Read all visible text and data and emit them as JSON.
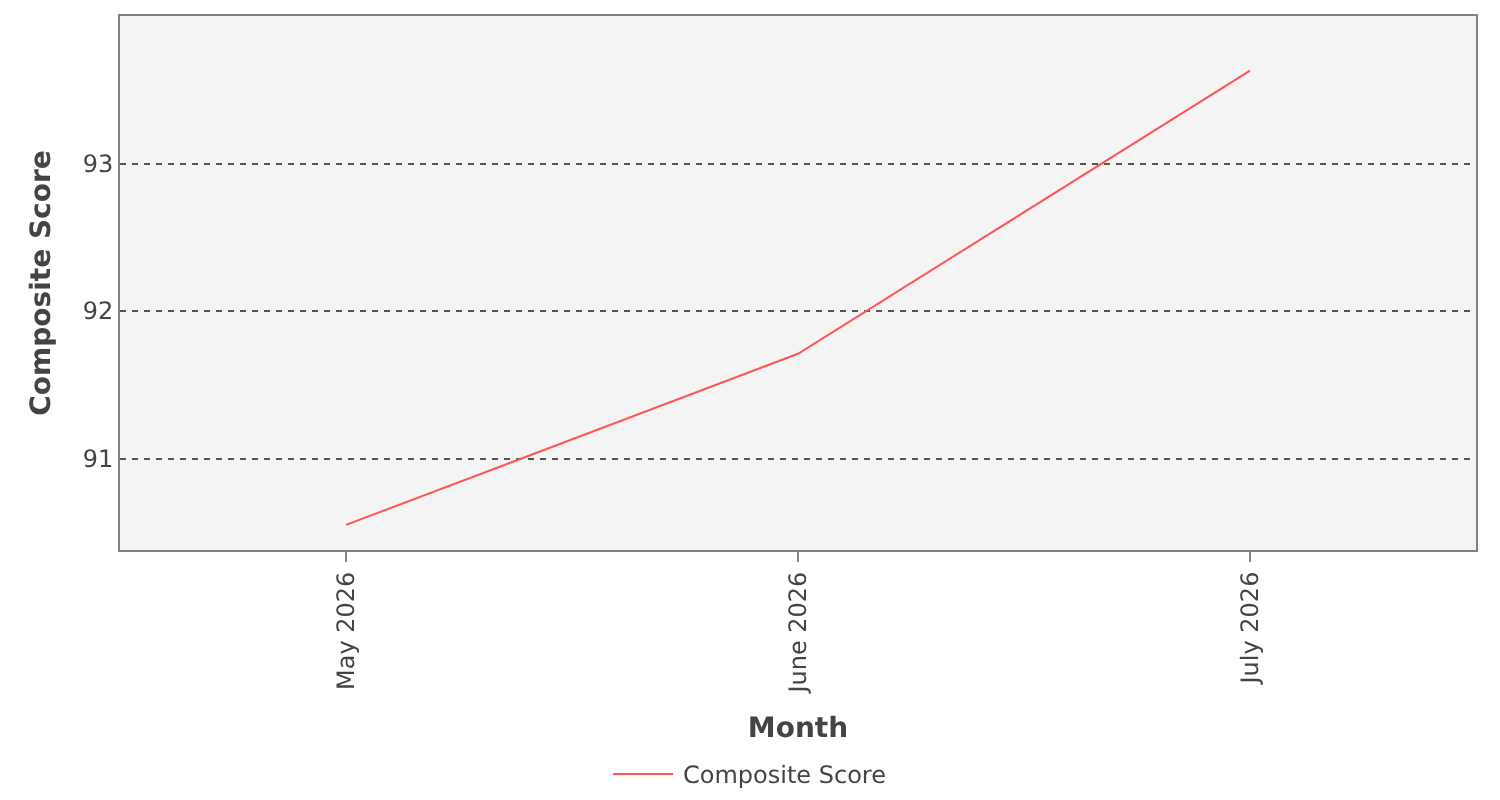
{
  "chart_data": {
    "type": "line",
    "xlabel": "Month",
    "ylabel": "Composite Score",
    "categories": [
      "May 2026",
      "June 2026",
      "July 2026"
    ],
    "series": [
      {
        "name": "Composite Score",
        "color": "#ff5555",
        "values": [
          90.55,
          91.71,
          93.63
        ]
      }
    ],
    "ylim": [
      90.38,
      94.0
    ],
    "yticks": [
      91,
      92,
      93
    ],
    "grid": "y",
    "legend": "bottom",
    "marker": "none",
    "line_style": "solid"
  }
}
